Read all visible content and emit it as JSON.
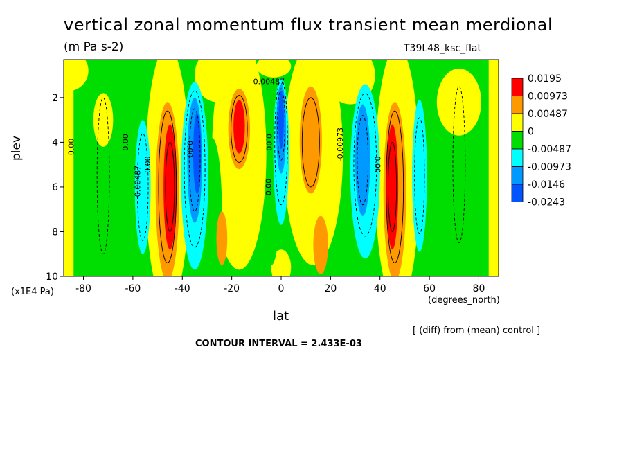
{
  "chart_data": {
    "type": "heatmap",
    "title": "vertical zonal momentum flux transient mean merdional",
    "units": "(m Pa s-2)",
    "run_id": "T39L48_ksc_flat",
    "xlabel": "lat",
    "x_units": "(degrees_north)",
    "ylabel": "plev",
    "y_units": "(x1E4 Pa)",
    "xlim": [
      -88,
      88
    ],
    "ylim": [
      10,
      0.3
    ],
    "x_ticks": [
      "-80",
      "-60",
      "-40",
      "-20",
      "0",
      "20",
      "40",
      "60",
      "80"
    ],
    "y_ticks": [
      "2",
      "4",
      "6",
      "8",
      "10"
    ],
    "legend_levels": [
      "0.0195",
      "0.00973",
      "0.00487",
      "0",
      "-0.00487",
      "-0.00973",
      "-0.0146",
      "-0.0243"
    ],
    "legend_colors": [
      "#ff0000",
      "#ff9900",
      "#ffff00",
      "#00dd00",
      "#00ffff",
      "#0099ff",
      "#0055ff"
    ],
    "legend_placement": "right",
    "contour_labels": [
      "0.00",
      "0.00",
      "0.00",
      "-0.00487",
      "0.00",
      "0.00",
      "-0.00487",
      "0.00",
      "-0.00973",
      "0.00"
    ],
    "footnote": "[ (diff) from (mean) control ]",
    "contour_interval": "CONTOUR INTERVAL = 2.433E-03",
    "field_structures": [
      {
        "lat": -46,
        "plev_range": [
          3.5,
          9.5
        ],
        "sign": "positive",
        "peak": 0.0195
      },
      {
        "lat": -35,
        "plev_range": [
          2.0,
          9.0
        ],
        "sign": "negative",
        "peak": -0.0243
      },
      {
        "lat": -17,
        "plev_range": [
          2.0,
          4.8
        ],
        "sign": "positive",
        "peak": 0.0195
      },
      {
        "lat": 0,
        "plev_range": [
          1.2,
          7.5
        ],
        "sign": "negative",
        "peak": -0.0243
      },
      {
        "lat": 13,
        "plev_range": [
          1.5,
          6.5
        ],
        "sign": "positive",
        "peak": 0.00973
      },
      {
        "lat": 34,
        "plev_range": [
          2.0,
          8.5
        ],
        "sign": "negative",
        "peak": -0.0146
      },
      {
        "lat": 47,
        "plev_range": [
          3.5,
          9.5
        ],
        "sign": "positive",
        "peak": 0.0195
      }
    ]
  }
}
